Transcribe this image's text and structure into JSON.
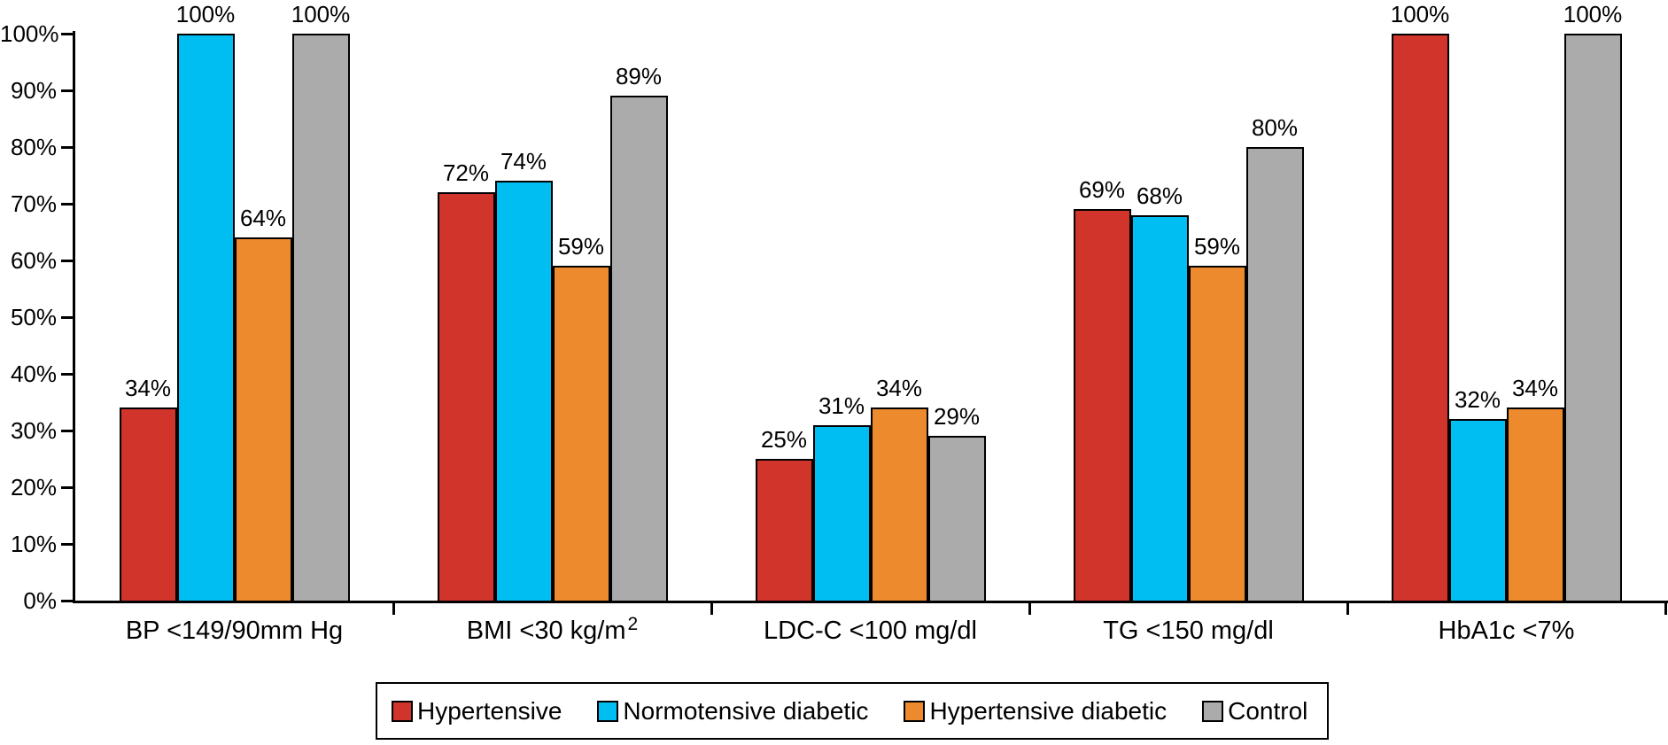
{
  "chart_data": {
    "type": "bar",
    "title": "",
    "xlabel": "",
    "ylabel": "",
    "value_label_suffix": "%",
    "categories": [
      {
        "label": "BP <149/90mm Hg",
        "sup": ""
      },
      {
        "label": "BMI <30 kg/m",
        "sup": "2"
      },
      {
        "label": "LDC-C <100 mg/dl",
        "sup": ""
      },
      {
        "label": "TG <150 mg/dl",
        "sup": ""
      },
      {
        "label": "HbA1c <7%",
        "sup": ""
      }
    ],
    "series": [
      {
        "name": "Hypertensive",
        "color": "#d1342b",
        "values": [
          34,
          72,
          25,
          69,
          100
        ]
      },
      {
        "name": "Normotensive diabetic",
        "color": "#00bdf2",
        "values": [
          100,
          74,
          31,
          68,
          32
        ]
      },
      {
        "name": "Hypertensive diabetic",
        "color": "#ec8a2d",
        "values": [
          64,
          59,
          34,
          59,
          34
        ]
      },
      {
        "name": "Control",
        "color": "#ababab",
        "values": [
          100,
          89,
          29,
          80,
          100
        ]
      }
    ],
    "y_axis": {
      "min": 0,
      "max": 100,
      "step": 10,
      "tick_labels": [
        "0%",
        "10%",
        "20%",
        "30%",
        "40%",
        "50%",
        "60%",
        "70%",
        "80%",
        "90%",
        "100%"
      ]
    },
    "grid": "off",
    "legend_position": "bottom",
    "colors": {
      "axis": "#000000",
      "bar_border": "#000000",
      "text": "#000000",
      "background": "#ffffff"
    }
  }
}
